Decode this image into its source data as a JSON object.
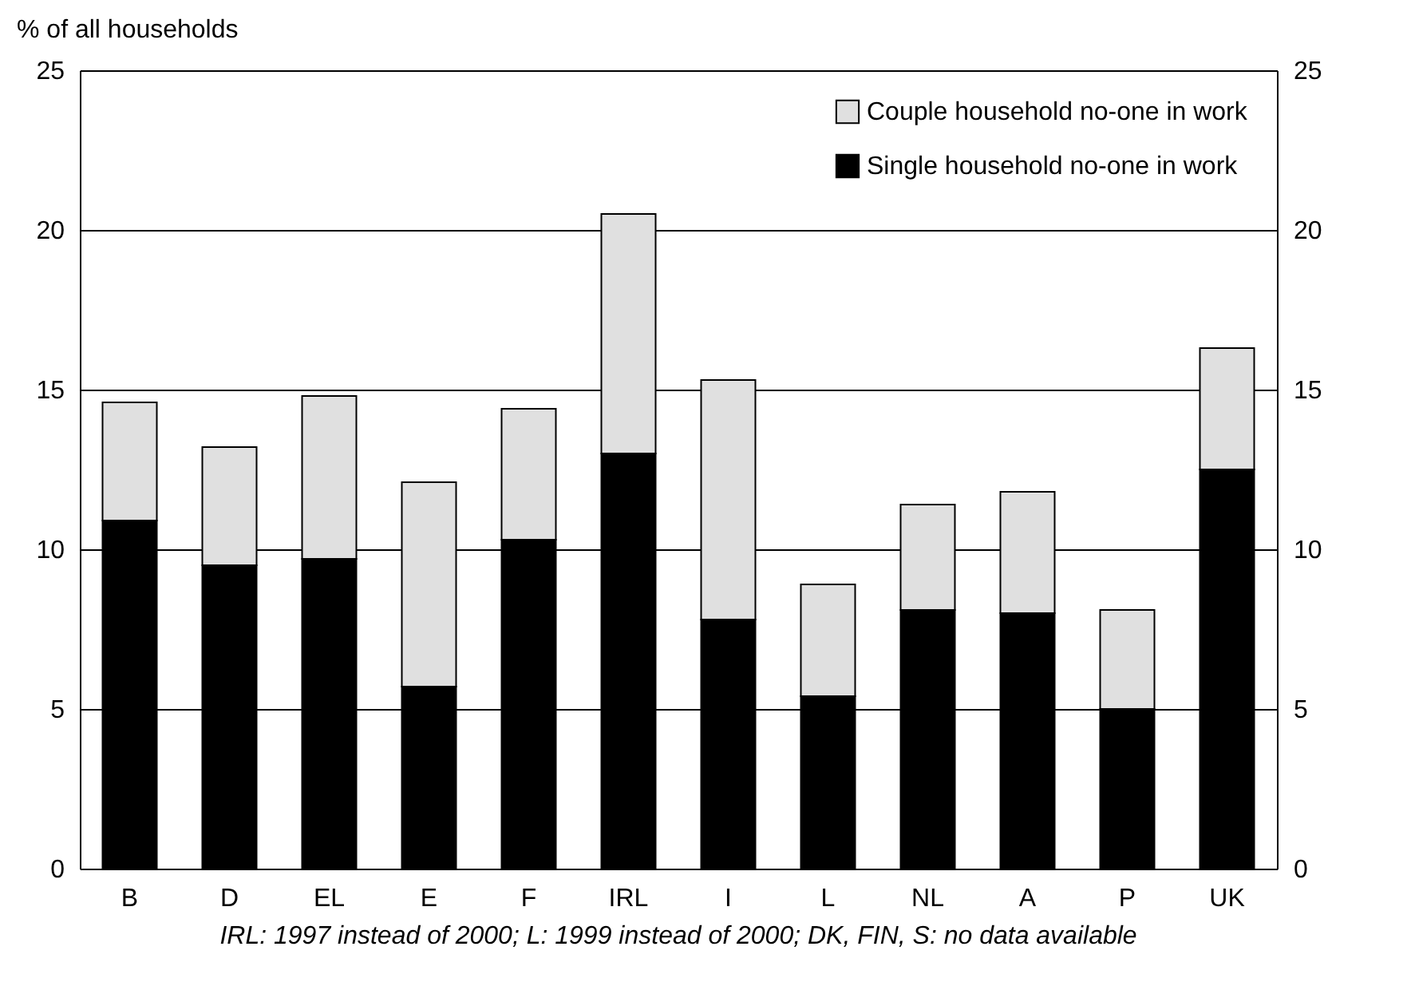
{
  "chart_data": {
    "type": "bar",
    "stacked": true,
    "ylabel": "% of all households",
    "categories": [
      "B",
      "D",
      "EL",
      "E",
      "F",
      "IRL",
      "I",
      "L",
      "NL",
      "A",
      "P",
      "UK"
    ],
    "series": [
      {
        "name": "Single household no-one in work",
        "color": "#000000",
        "values": [
          10.9,
          9.5,
          9.7,
          5.7,
          10.3,
          13.0,
          7.8,
          5.4,
          8.1,
          8.0,
          5.0,
          12.5
        ]
      },
      {
        "name": "Couple household no-one in work",
        "color": "#e0e0e0",
        "values": [
          3.7,
          3.7,
          5.1,
          6.4,
          4.1,
          7.5,
          7.5,
          3.5,
          3.3,
          3.8,
          3.1,
          3.8
        ]
      }
    ],
    "ylim": [
      0,
      25
    ],
    "yticks": [
      0,
      5,
      10,
      15,
      20,
      25
    ],
    "y2lim": [
      0,
      25
    ],
    "y2ticks": [
      0,
      5,
      10,
      15,
      20,
      25
    ],
    "grid": "y",
    "legend": "top right",
    "annotations": [
      "IRL: 1997 instead of 2000; L: 1999 instead of 2000; DK, FIN, S: no data available"
    ]
  }
}
